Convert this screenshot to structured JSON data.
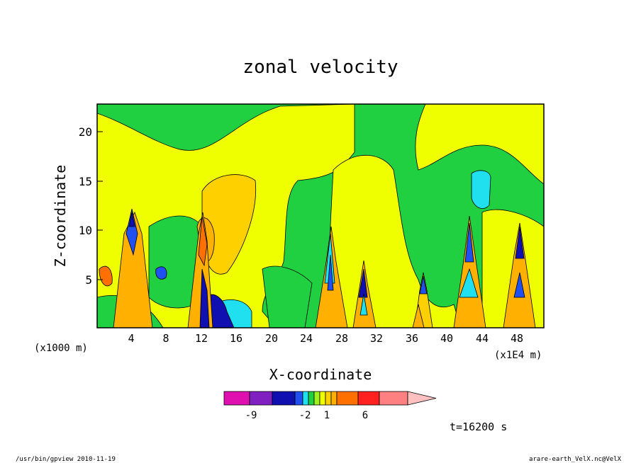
{
  "chart_data": {
    "type": "heatmap",
    "title": "zonal velocity",
    "xlabel": "X-coordinate",
    "ylabel": "Z-coordinate",
    "x_unit_left": "(x1000 m)",
    "x_unit_right": "(x1E4 m)",
    "xlim": [
      0,
      51
    ],
    "ylim": [
      0,
      23
    ],
    "x_ticks": [
      "4",
      "8",
      "12",
      "16",
      "20",
      "24",
      "28",
      "32",
      "36",
      "40",
      "44",
      "48"
    ],
    "y_ticks": [
      "5",
      "10",
      "15",
      "20"
    ],
    "colorbar": {
      "colors": [
        "#e010b0",
        "#8020c0",
        "#1010b0",
        "#2050f0",
        "#20e0f0",
        "#20d040",
        "#a0f020",
        "#f0ff00",
        "#ffd000",
        "#ffb000",
        "#ff7000",
        "#ff2020",
        "#ff8080",
        "#ffc0c0"
      ],
      "tick_labels": [
        "-9",
        "-2",
        "1",
        "6"
      ]
    },
    "time_label": "t=16200 s",
    "footer_left": "/usr/bin/gpview   2010-11-19",
    "footer_right": "arare-earth_VelX.nc@VelX"
  }
}
